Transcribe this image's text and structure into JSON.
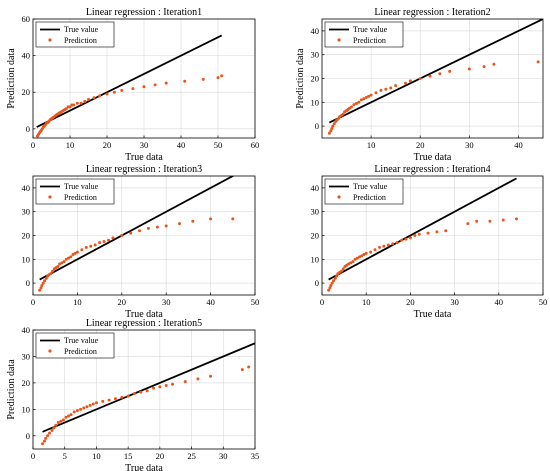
{
  "figure": {
    "legend": {
      "true_label": "True value",
      "pred_label": "Prediction"
    },
    "colors": {
      "true_line": "#000000",
      "prediction": "#e8561c",
      "axes": "#000000",
      "grid": "#d9d9d9"
    }
  },
  "chart_data": [
    {
      "type": "scatter",
      "title": "Linear regression : Iteration1",
      "xlabel": "True data",
      "ylabel": "Prediction data",
      "xlim": [
        0,
        60
      ],
      "ylim": [
        -5,
        60
      ],
      "xticks": [
        "0",
        "10",
        "20",
        "30",
        "40",
        "50",
        "60"
      ],
      "yticks": [
        "0",
        "20",
        "40",
        "60"
      ],
      "grid": true,
      "legend_position": "top-left",
      "series": [
        {
          "name": "True value",
          "kind": "line",
          "x": [
            1,
            51
          ],
          "y": [
            1,
            51
          ]
        },
        {
          "name": "Prediction",
          "kind": "scatter",
          "x": [
            1.2,
            1.5,
            1.8,
            2,
            2.2,
            2.5,
            2.8,
            3,
            3.3,
            3.6,
            4,
            4.3,
            4.6,
            5,
            5.3,
            5.6,
            6,
            6.3,
            6.6,
            7,
            7.4,
            7.8,
            8.2,
            8.6,
            9,
            9.5,
            10,
            10.5,
            11,
            12,
            13,
            14,
            15,
            16.5,
            18,
            20,
            22,
            24,
            27,
            30,
            33,
            36,
            41,
            46,
            50,
            51
          ],
          "y": [
            -4,
            -3,
            -2,
            -1.5,
            -1,
            0,
            1,
            1.5,
            2,
            3,
            3.5,
            4,
            5,
            5.5,
            6,
            6.5,
            7,
            7.5,
            8,
            8.5,
            9,
            9.5,
            10,
            10.5,
            11,
            12,
            12,
            13,
            13,
            14,
            14,
            15,
            16,
            17,
            18,
            19,
            20,
            21,
            22,
            23,
            24,
            25,
            26,
            27,
            28,
            29
          ]
        }
      ]
    },
    {
      "type": "scatter",
      "title": "Linear regression : Iteration2",
      "xlabel": "True data",
      "ylabel": "Prediction data",
      "xlim": [
        0,
        45
      ],
      "ylim": [
        -5,
        45
      ],
      "xticks": [
        "10",
        "20",
        "30",
        "40"
      ],
      "yticks": [
        "0",
        "10",
        "20",
        "30",
        "40"
      ],
      "grid": true,
      "legend_position": "top-left",
      "series": [
        {
          "name": "True value",
          "kind": "line",
          "x": [
            1.5,
            45
          ],
          "y": [
            1.5,
            45
          ]
        },
        {
          "name": "Prediction",
          "kind": "scatter",
          "x": [
            1.5,
            1.8,
            2,
            2.2,
            2.5,
            2.8,
            3,
            3.3,
            3.6,
            4,
            4.3,
            4.6,
            5,
            5.3,
            5.6,
            6,
            6.5,
            7,
            7.5,
            8,
            8.5,
            9,
            9.5,
            10,
            11,
            12,
            13,
            14,
            15,
            17,
            18,
            20,
            22,
            24,
            26,
            30,
            33,
            35,
            44
          ],
          "y": [
            -3,
            -2,
            -1,
            0,
            1,
            2,
            2.5,
            3,
            4,
            4.5,
            5,
            6,
            6.5,
            7,
            7.5,
            8,
            9,
            9.5,
            10,
            11,
            11.5,
            12,
            12.5,
            13,
            14,
            15,
            15.5,
            16,
            17,
            18,
            19,
            20,
            21,
            22,
            23,
            24,
            25,
            26,
            27
          ]
        }
      ]
    },
    {
      "type": "scatter",
      "title": "Linear regression : Iteration3",
      "xlabel": "True data",
      "ylabel": "",
      "xlim": [
        0,
        50
      ],
      "ylim": [
        -5,
        45
      ],
      "xticks": [
        "0",
        "10",
        "20",
        "30",
        "40",
        "50"
      ],
      "yticks": [
        "0",
        "10",
        "20",
        "30",
        "40"
      ],
      "grid": true,
      "legend_position": "top-left",
      "series": [
        {
          "name": "True value",
          "kind": "line",
          "x": [
            1.5,
            46
          ],
          "y": [
            1.5,
            46
          ]
        },
        {
          "name": "Prediction",
          "kind": "scatter",
          "x": [
            1.5,
            1.8,
            2,
            2.3,
            2.6,
            3,
            3.3,
            3.6,
            4,
            4.4,
            4.8,
            5.2,
            5.6,
            6,
            6.5,
            7,
            7.5,
            8,
            8.5,
            9,
            9.5,
            10,
            11,
            12,
            13,
            14,
            15,
            16,
            17,
            18,
            20,
            22,
            24,
            26,
            28,
            30,
            33,
            36,
            40,
            45
          ],
          "y": [
            -3,
            -2,
            -1,
            0,
            1,
            2,
            3,
            3.5,
            4,
            5,
            6,
            6.5,
            7,
            8,
            8.5,
            9,
            10,
            10.5,
            11,
            12,
            12.5,
            13,
            14,
            15,
            15.5,
            16,
            17,
            17.5,
            18,
            19,
            20,
            21,
            22,
            23,
            23.5,
            24,
            25,
            26,
            27,
            27
          ]
        }
      ]
    },
    {
      "type": "scatter",
      "title": "Linear regression : Iteration4",
      "xlabel": "True data",
      "ylabel": "",
      "xlim": [
        0,
        50
      ],
      "ylim": [
        -5,
        45
      ],
      "xticks": [
        "0",
        "10",
        "20",
        "30",
        "40",
        "50"
      ],
      "yticks": [
        "0",
        "10",
        "20",
        "30",
        "40"
      ],
      "grid": true,
      "legend_position": "top-left",
      "series": [
        {
          "name": "True value",
          "kind": "line",
          "x": [
            1.5,
            44
          ],
          "y": [
            1.5,
            44
          ]
        },
        {
          "name": "Prediction",
          "kind": "scatter",
          "x": [
            1.5,
            1.8,
            2,
            2.3,
            2.6,
            3,
            3.3,
            3.6,
            4,
            4.4,
            4.8,
            5.2,
            5.6,
            6,
            6.5,
            7,
            7.5,
            8,
            8.5,
            9,
            9.5,
            10,
            11,
            12,
            13,
            14,
            15,
            16,
            17,
            18,
            19,
            20,
            21,
            22,
            24,
            26,
            28,
            33,
            35,
            38,
            41,
            44
          ],
          "y": [
            -3,
            -2,
            -1,
            0,
            1,
            2,
            3,
            4,
            4.5,
            5,
            6,
            7,
            7.5,
            8,
            8.5,
            9,
            10,
            10.5,
            11,
            11.5,
            12,
            12.5,
            13,
            14,
            15,
            15.5,
            16,
            16.5,
            17,
            18,
            18.5,
            19,
            20,
            20.5,
            21,
            21.5,
            22,
            25,
            26,
            26,
            26.5,
            27
          ]
        }
      ]
    },
    {
      "type": "scatter",
      "title": "Linear regression : Iteration5",
      "xlabel": "True data",
      "ylabel": "Prediction data",
      "xlim": [
        0,
        35
      ],
      "ylim": [
        -5,
        40
      ],
      "xticks": [
        "0",
        "5",
        "10",
        "15",
        "20",
        "25",
        "30",
        "35"
      ],
      "yticks": [
        "0",
        "10",
        "20",
        "30",
        "40"
      ],
      "grid": true,
      "legend_position": "top-left",
      "series": [
        {
          "name": "True value",
          "kind": "line",
          "x": [
            1.5,
            35
          ],
          "y": [
            1.5,
            35
          ]
        },
        {
          "name": "Prediction",
          "kind": "scatter",
          "x": [
            1.5,
            1.8,
            2,
            2.3,
            2.6,
            3,
            3.3,
            3.6,
            4,
            4.4,
            4.8,
            5.2,
            5.6,
            6,
            6.5,
            7,
            7.5,
            8,
            8.5,
            9,
            9.5,
            10,
            11,
            12,
            13,
            14,
            15,
            16,
            17,
            18,
            19,
            20,
            21,
            22,
            24,
            26,
            28,
            33,
            34
          ],
          "y": [
            -3,
            -2,
            -1,
            0,
            1,
            2,
            3,
            4,
            5,
            5.5,
            6,
            7,
            7.5,
            8,
            9,
            9.5,
            10,
            10.5,
            11,
            11.5,
            12,
            12.5,
            13,
            13.5,
            14,
            14.5,
            15,
            16,
            16.5,
            17,
            18,
            18.5,
            19,
            19.5,
            20.5,
            21.5,
            22.5,
            25,
            26
          ]
        }
      ]
    }
  ]
}
